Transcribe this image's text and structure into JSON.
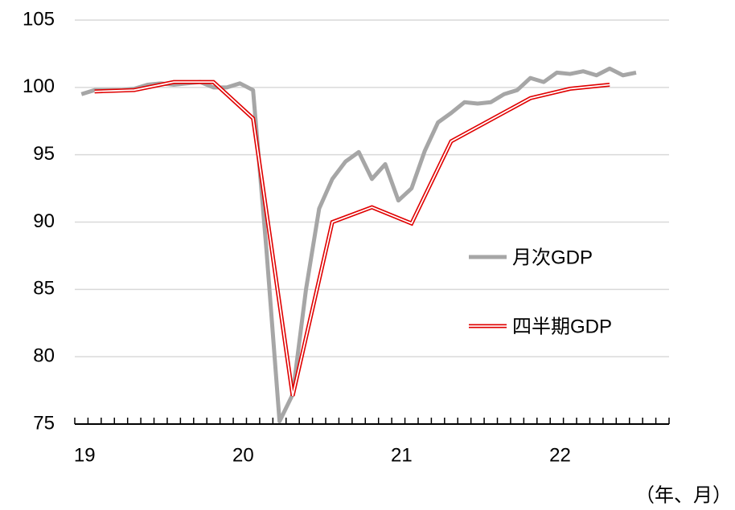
{
  "chart_data": {
    "type": "line",
    "unit_label": "（年、月）",
    "xlim": [
      18.958,
      22.708
    ],
    "xticks": [
      19,
      20,
      21,
      22
    ],
    "ylim": [
      75,
      105
    ],
    "yticks": [
      75,
      80,
      85,
      90,
      95,
      100,
      105
    ],
    "grid": true,
    "series": [
      {
        "name": "月次GDP",
        "color": "#a6a6a6",
        "style": "solid",
        "x": [
          19,
          19.083,
          19.167,
          19.25,
          19.333,
          19.417,
          19.5,
          19.583,
          19.667,
          19.75,
          19.833,
          19.917,
          20,
          20.083,
          20.167,
          20.25,
          20.333,
          20.417,
          20.5,
          20.583,
          20.667,
          20.75,
          20.833,
          20.917,
          21,
          21.083,
          21.167,
          21.25,
          21.333,
          21.417,
          21.5,
          21.583,
          21.667,
          21.75,
          21.833,
          21.917,
          22,
          22.083,
          22.167,
          22.25,
          22.333,
          22.417,
          22.5
        ],
        "values": [
          99.5,
          99.8,
          99.8,
          99.8,
          99.9,
          100.2,
          100.3,
          100.2,
          100.3,
          100.4,
          100.0,
          100.0,
          100.3,
          99.8,
          88.0,
          75.2,
          77.2,
          85.0,
          91.0,
          93.2,
          94.5,
          95.2,
          93.2,
          94.3,
          91.6,
          92.5,
          95.3,
          97.4,
          98.1,
          98.9,
          98.8,
          98.9,
          99.5,
          99.8,
          100.7,
          100.4,
          101.1,
          101.0,
          101.2,
          100.9,
          101.4,
          100.9,
          101.1
        ]
      },
      {
        "name": "四半期GDP",
        "color": "#e00000",
        "style": "double",
        "x": [
          19.083,
          19.333,
          19.583,
          19.833,
          20.083,
          20.333,
          20.583,
          20.833,
          21.083,
          21.333,
          21.583,
          21.833,
          22.083,
          22.333
        ],
        "values": [
          99.7,
          99.8,
          100.4,
          100.4,
          97.7,
          77.1,
          90.0,
          91.1,
          89.9,
          96.0,
          97.6,
          99.2,
          99.9,
          100.2
        ]
      }
    ]
  }
}
